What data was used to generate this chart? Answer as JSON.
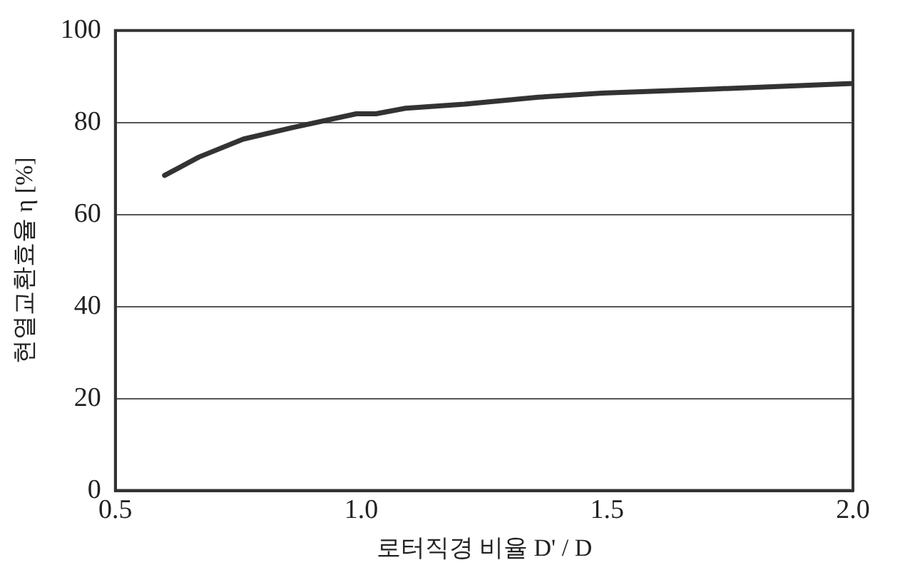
{
  "chart_data": {
    "type": "line",
    "xlabel": "로터직경 비율 D' / D",
    "ylabel": "현열교환효율 η [%]",
    "xlim": [
      0.5,
      2.0
    ],
    "xticks": [
      {
        "value": 0.5,
        "label": "0.5"
      },
      {
        "value": 1.0,
        "label": "1.0"
      },
      {
        "value": 1.5,
        "label": "1.5"
      },
      {
        "value": 2.0,
        "label": "2.0"
      }
    ],
    "ylim": [
      0,
      100
    ],
    "yticks": [
      0,
      20,
      40,
      60,
      80,
      100
    ],
    "grid": "y",
    "legend": false,
    "marker": "none",
    "line_style": "solid",
    "series": [
      {
        "color": "#333333",
        "x": [
          0.6,
          0.67,
          0.76,
          0.86,
          0.99,
          1.03,
          1.09,
          1.21,
          1.36,
          1.49,
          1.72,
          2.0
        ],
        "values": [
          68.5,
          72.5,
          76.4,
          78.9,
          81.9,
          81.9,
          83.1,
          84.0,
          85.5,
          86.4,
          87.3,
          88.5
        ]
      }
    ]
  }
}
